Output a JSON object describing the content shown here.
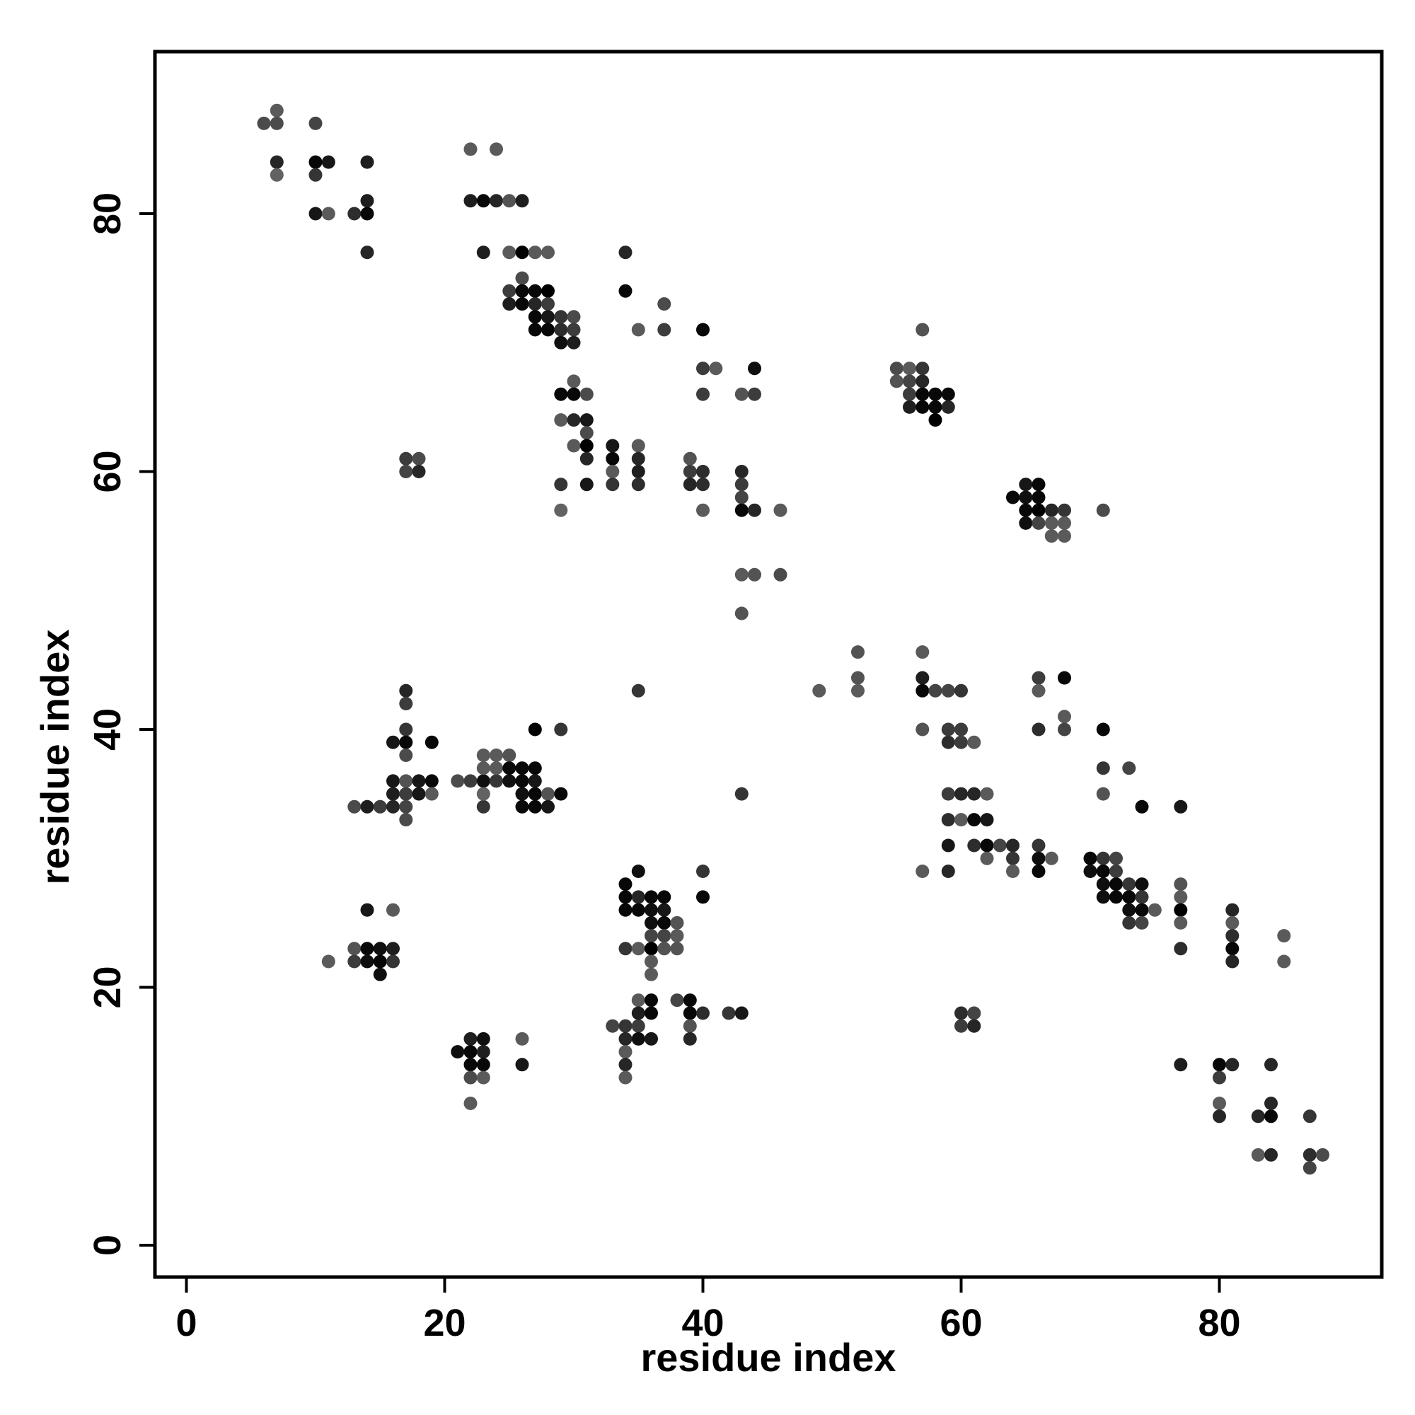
{
  "chart_data": {
    "type": "scatter",
    "title": "",
    "xlabel": "residue index",
    "ylabel": "residue index",
    "xlim": [
      -2.5,
      92.5
    ],
    "ylim": [
      -2.5,
      92.5
    ],
    "x_ticks": [
      0,
      20,
      40,
      60,
      80
    ],
    "y_ticks": [
      0,
      20,
      40,
      60,
      80
    ],
    "x_tick_labels": [
      "0",
      "20",
      "40",
      "60",
      "80"
    ],
    "y_tick_labels": [
      "0",
      "20",
      "40",
      "60",
      "80"
    ],
    "grid": false,
    "legend": "none",
    "marker_color_scale": "grayscale: darker = stronger contact (0 light gray, 1 black)",
    "points": [
      [
        6,
        87,
        0.5
      ],
      [
        7,
        88,
        0.4
      ],
      [
        7,
        87,
        0.5
      ],
      [
        7,
        84,
        0.75
      ],
      [
        7,
        83,
        0.35
      ],
      [
        10,
        87,
        0.55
      ],
      [
        10,
        84,
        0.95
      ],
      [
        10,
        83,
        0.65
      ],
      [
        10,
        80,
        0.85
      ],
      [
        11,
        84,
        0.85
      ],
      [
        11,
        80,
        0.4
      ],
      [
        13,
        80,
        0.7
      ],
      [
        14,
        84,
        0.8
      ],
      [
        14,
        81,
        0.8
      ],
      [
        14,
        80,
        0.95
      ],
      [
        14,
        77,
        0.75
      ],
      [
        22,
        85,
        0.4
      ],
      [
        24,
        85,
        0.4
      ],
      [
        22,
        81,
        0.8
      ],
      [
        23,
        81,
        0.95
      ],
      [
        24,
        81,
        0.75
      ],
      [
        25,
        81,
        0.45
      ],
      [
        26,
        81,
        0.8
      ],
      [
        23,
        77,
        0.8
      ],
      [
        25,
        77,
        0.4
      ],
      [
        26,
        77,
        1.0
      ],
      [
        27,
        77,
        0.4
      ],
      [
        28,
        77,
        0.4
      ],
      [
        26,
        75,
        0.5
      ],
      [
        25,
        74,
        0.6
      ],
      [
        26,
        74,
        0.95
      ],
      [
        27,
        74,
        0.95
      ],
      [
        28,
        74,
        1.0
      ],
      [
        25,
        73,
        0.8
      ],
      [
        26,
        73,
        0.95
      ],
      [
        27,
        73,
        0.75
      ],
      [
        28,
        73,
        0.6
      ],
      [
        27,
        72,
        0.95
      ],
      [
        28,
        72,
        0.85
      ],
      [
        29,
        72,
        0.65
      ],
      [
        30,
        72,
        0.5
      ],
      [
        27,
        71,
        0.95
      ],
      [
        28,
        71,
        0.95
      ],
      [
        29,
        71,
        0.7
      ],
      [
        30,
        71,
        0.6
      ],
      [
        29,
        70,
        0.9
      ],
      [
        30,
        70,
        0.8
      ],
      [
        34,
        77,
        0.75
      ],
      [
        34,
        74,
        0.95
      ],
      [
        35,
        71,
        0.4
      ],
      [
        37,
        73,
        0.5
      ],
      [
        37,
        71,
        0.6
      ],
      [
        40,
        71,
        0.95
      ],
      [
        40,
        68,
        0.6
      ],
      [
        41,
        68,
        0.4
      ],
      [
        40,
        66,
        0.6
      ],
      [
        44,
        68,
        0.9
      ],
      [
        43,
        66,
        0.45
      ],
      [
        44,
        66,
        0.6
      ],
      [
        30,
        67,
        0.4
      ],
      [
        29,
        66,
        0.95
      ],
      [
        30,
        66,
        0.95
      ],
      [
        31,
        66,
        0.5
      ],
      [
        29,
        64,
        0.4
      ],
      [
        30,
        64,
        0.75
      ],
      [
        31,
        64,
        0.85
      ],
      [
        31,
        63,
        0.5
      ],
      [
        30,
        62,
        0.4
      ],
      [
        31,
        62,
        1.0
      ],
      [
        31,
        61,
        0.75
      ],
      [
        29,
        59,
        0.65
      ],
      [
        29,
        57,
        0.35
      ],
      [
        31,
        59,
        0.85
      ],
      [
        33,
        62,
        0.85
      ],
      [
        33,
        61,
        0.95
      ],
      [
        33,
        60,
        0.4
      ],
      [
        33,
        59,
        0.65
      ],
      [
        35,
        62,
        0.4
      ],
      [
        35,
        61,
        0.75
      ],
      [
        35,
        60,
        0.8
      ],
      [
        35,
        59,
        0.7
      ],
      [
        39,
        61,
        0.45
      ],
      [
        39,
        60,
        0.6
      ],
      [
        40,
        60,
        0.7
      ],
      [
        39,
        59,
        0.75
      ],
      [
        40,
        59,
        0.7
      ],
      [
        40,
        57,
        0.4
      ],
      [
        43,
        60,
        0.75
      ],
      [
        43,
        59,
        0.6
      ],
      [
        43,
        58,
        0.55
      ],
      [
        43,
        57,
        0.95
      ],
      [
        44,
        57,
        0.75
      ],
      [
        46,
        57,
        0.4
      ],
      [
        43,
        52,
        0.4
      ],
      [
        44,
        52,
        0.45
      ],
      [
        46,
        52,
        0.5
      ],
      [
        43,
        49,
        0.45
      ],
      [
        17,
        61,
        0.6
      ],
      [
        18,
        61,
        0.5
      ],
      [
        17,
        60,
        0.55
      ],
      [
        18,
        60,
        0.75
      ],
      [
        57,
        71,
        0.45
      ],
      [
        55,
        68,
        0.5
      ],
      [
        56,
        68,
        0.4
      ],
      [
        57,
        68,
        0.65
      ],
      [
        55,
        67,
        0.45
      ],
      [
        56,
        67,
        0.55
      ],
      [
        57,
        67,
        0.75
      ],
      [
        56,
        66,
        0.6
      ],
      [
        57,
        66,
        0.95
      ],
      [
        58,
        66,
        0.95
      ],
      [
        59,
        66,
        0.95
      ],
      [
        56,
        65,
        0.8
      ],
      [
        57,
        65,
        0.95
      ],
      [
        58,
        65,
        0.95
      ],
      [
        59,
        65,
        0.75
      ],
      [
        58,
        64,
        1.0
      ],
      [
        64,
        58,
        0.95
      ],
      [
        65,
        59,
        0.85
      ],
      [
        66,
        59,
        0.95
      ],
      [
        65,
        58,
        0.9
      ],
      [
        66,
        58,
        0.95
      ],
      [
        65,
        57,
        0.95
      ],
      [
        66,
        57,
        1.0
      ],
      [
        67,
        57,
        0.75
      ],
      [
        68,
        57,
        0.65
      ],
      [
        65,
        56,
        0.9
      ],
      [
        66,
        56,
        0.55
      ],
      [
        67,
        56,
        0.4
      ],
      [
        68,
        56,
        0.4
      ],
      [
        67,
        55,
        0.4
      ],
      [
        68,
        55,
        0.4
      ],
      [
        71,
        57,
        0.5
      ],
      [
        52,
        46,
        0.45
      ],
      [
        49,
        43,
        0.4
      ],
      [
        52,
        44,
        0.45
      ],
      [
        52,
        43,
        0.4
      ],
      [
        57,
        46,
        0.4
      ],
      [
        57,
        44,
        0.8
      ],
      [
        57,
        43,
        0.95
      ],
      [
        58,
        43,
        0.55
      ],
      [
        59,
        43,
        0.55
      ],
      [
        60,
        43,
        0.65
      ],
      [
        57,
        40,
        0.45
      ],
      [
        59,
        40,
        0.6
      ],
      [
        60,
        40,
        0.6
      ],
      [
        59,
        39,
        0.7
      ],
      [
        60,
        39,
        0.6
      ],
      [
        61,
        39,
        0.4
      ],
      [
        66,
        44,
        0.6
      ],
      [
        66,
        43,
        0.4
      ],
      [
        68,
        44,
        0.95
      ],
      [
        68,
        41,
        0.4
      ],
      [
        66,
        40,
        0.7
      ],
      [
        68,
        40,
        0.55
      ],
      [
        59,
        35,
        0.6
      ],
      [
        60,
        35,
        0.75
      ],
      [
        61,
        35,
        0.75
      ],
      [
        62,
        35,
        0.4
      ],
      [
        59,
        33,
        0.7
      ],
      [
        60,
        33,
        0.4
      ],
      [
        61,
        33,
        0.95
      ],
      [
        62,
        33,
        0.85
      ],
      [
        59,
        31,
        0.85
      ],
      [
        61,
        31,
        0.7
      ],
      [
        62,
        31,
        0.95
      ],
      [
        63,
        31,
        0.55
      ],
      [
        64,
        31,
        0.75
      ],
      [
        57,
        29,
        0.4
      ],
      [
        59,
        29,
        0.75
      ],
      [
        62,
        30,
        0.4
      ],
      [
        64,
        30,
        0.65
      ],
      [
        64,
        29,
        0.4
      ],
      [
        66,
        31,
        0.65
      ],
      [
        66,
        30,
        0.9
      ],
      [
        67,
        30,
        0.4
      ],
      [
        66,
        29,
        0.95
      ],
      [
        71,
        40,
        0.95
      ],
      [
        71,
        37,
        0.65
      ],
      [
        73,
        37,
        0.55
      ],
      [
        71,
        35,
        0.45
      ],
      [
        74,
        34,
        0.95
      ],
      [
        77,
        34,
        0.85
      ],
      [
        70,
        30,
        0.95
      ],
      [
        71,
        30,
        0.65
      ],
      [
        72,
        30,
        0.55
      ],
      [
        70,
        29,
        0.9
      ],
      [
        71,
        29,
        0.95
      ],
      [
        72,
        29,
        0.6
      ],
      [
        71,
        28,
        0.9
      ],
      [
        72,
        28,
        0.95
      ],
      [
        73,
        28,
        0.65
      ],
      [
        74,
        28,
        0.9
      ],
      [
        71,
        27,
        0.9
      ],
      [
        72,
        27,
        0.95
      ],
      [
        73,
        27,
        0.95
      ],
      [
        74,
        27,
        0.65
      ],
      [
        73,
        26,
        0.9
      ],
      [
        74,
        26,
        0.95
      ],
      [
        75,
        26,
        0.4
      ],
      [
        73,
        25,
        0.65
      ],
      [
        74,
        25,
        0.55
      ],
      [
        77,
        28,
        0.45
      ],
      [
        77,
        27,
        0.4
      ],
      [
        77,
        26,
        1.0
      ],
      [
        77,
        25,
        0.4
      ],
      [
        77,
        23,
        0.7
      ],
      [
        81,
        26,
        0.75
      ],
      [
        81,
        25,
        0.4
      ],
      [
        81,
        24,
        0.7
      ],
      [
        81,
        23,
        0.95
      ],
      [
        81,
        22,
        0.75
      ],
      [
        85,
        24,
        0.4
      ],
      [
        85,
        22,
        0.4
      ],
      [
        17,
        43,
        0.75
      ],
      [
        17,
        42,
        0.6
      ],
      [
        17,
        40,
        0.65
      ],
      [
        17,
        39,
        0.95
      ],
      [
        19,
        39,
        0.95
      ],
      [
        17,
        38,
        0.5
      ],
      [
        16,
        39,
        0.85
      ],
      [
        16,
        36,
        0.85
      ],
      [
        17,
        36,
        0.45
      ],
      [
        18,
        36,
        0.85
      ],
      [
        19,
        36,
        0.95
      ],
      [
        16,
        35,
        0.8
      ],
      [
        17,
        35,
        0.6
      ],
      [
        18,
        35,
        0.85
      ],
      [
        19,
        35,
        0.4
      ],
      [
        13,
        34,
        0.5
      ],
      [
        14,
        34,
        0.8
      ],
      [
        15,
        34,
        0.6
      ],
      [
        16,
        34,
        0.75
      ],
      [
        17,
        34,
        0.55
      ],
      [
        17,
        33,
        0.5
      ],
      [
        21,
        36,
        0.5
      ],
      [
        22,
        36,
        0.6
      ],
      [
        23,
        36,
        0.9
      ],
      [
        24,
        36,
        0.65
      ],
      [
        23,
        34,
        0.65
      ],
      [
        23,
        35,
        0.35
      ],
      [
        23,
        38,
        0.4
      ],
      [
        24,
        38,
        0.4
      ],
      [
        25,
        38,
        0.45
      ],
      [
        23,
        37,
        0.4
      ],
      [
        24,
        37,
        0.4
      ],
      [
        25,
        37,
        0.95
      ],
      [
        26,
        37,
        0.95
      ],
      [
        27,
        37,
        0.95
      ],
      [
        25,
        36,
        0.9
      ],
      [
        26,
        36,
        0.95
      ],
      [
        27,
        36,
        0.85
      ],
      [
        26,
        35,
        0.9
      ],
      [
        27,
        35,
        0.95
      ],
      [
        28,
        35,
        0.45
      ],
      [
        29,
        35,
        0.95
      ],
      [
        26,
        34,
        0.95
      ],
      [
        27,
        34,
        0.95
      ],
      [
        28,
        34,
        0.85
      ],
      [
        27,
        40,
        1.0
      ],
      [
        29,
        40,
        0.65
      ],
      [
        11,
        22,
        0.4
      ],
      [
        13,
        23,
        0.45
      ],
      [
        14,
        23,
        0.95
      ],
      [
        15,
        23,
        0.9
      ],
      [
        16,
        23,
        0.8
      ],
      [
        13,
        22,
        0.6
      ],
      [
        14,
        22,
        0.9
      ],
      [
        15,
        22,
        0.95
      ],
      [
        16,
        22,
        0.65
      ],
      [
        15,
        21,
        0.9
      ],
      [
        14,
        26,
        0.85
      ],
      [
        16,
        26,
        0.4
      ],
      [
        35,
        43,
        0.65
      ],
      [
        43,
        35,
        0.65
      ],
      [
        34,
        28,
        0.95
      ],
      [
        35,
        29,
        0.9
      ],
      [
        34,
        27,
        0.95
      ],
      [
        35,
        27,
        0.75
      ],
      [
        36,
        27,
        0.95
      ],
      [
        37,
        27,
        0.95
      ],
      [
        34,
        26,
        0.95
      ],
      [
        35,
        26,
        0.95
      ],
      [
        36,
        26,
        0.9
      ],
      [
        37,
        26,
        0.85
      ],
      [
        36,
        25,
        0.9
      ],
      [
        37,
        25,
        0.95
      ],
      [
        38,
        25,
        0.45
      ],
      [
        36,
        24,
        0.55
      ],
      [
        37,
        24,
        0.55
      ],
      [
        38,
        24,
        0.4
      ],
      [
        34,
        23,
        0.65
      ],
      [
        35,
        23,
        0.4
      ],
      [
        36,
        23,
        1.0
      ],
      [
        37,
        23,
        0.45
      ],
      [
        38,
        23,
        0.45
      ],
      [
        36,
        22,
        0.4
      ],
      [
        36,
        21,
        0.4
      ],
      [
        40,
        29,
        0.65
      ],
      [
        40,
        27,
        0.95
      ],
      [
        33,
        17,
        0.55
      ],
      [
        34,
        17,
        0.65
      ],
      [
        35,
        17,
        0.6
      ],
      [
        34,
        16,
        0.75
      ],
      [
        35,
        16,
        0.9
      ],
      [
        36,
        16,
        0.85
      ],
      [
        35,
        19,
        0.4
      ],
      [
        36,
        19,
        0.95
      ],
      [
        35,
        18,
        0.8
      ],
      [
        36,
        18,
        0.95
      ],
      [
        34,
        15,
        0.4
      ],
      [
        34,
        14,
        0.75
      ],
      [
        34,
        13,
        0.4
      ],
      [
        38,
        19,
        0.55
      ],
      [
        39,
        19,
        0.95
      ],
      [
        39,
        18,
        0.95
      ],
      [
        40,
        18,
        0.7
      ],
      [
        39,
        17,
        0.45
      ],
      [
        39,
        16,
        0.75
      ],
      [
        42,
        18,
        0.65
      ],
      [
        43,
        18,
        0.85
      ],
      [
        21,
        15,
        0.9
      ],
      [
        22,
        16,
        0.8
      ],
      [
        23,
        16,
        0.9
      ],
      [
        22,
        15,
        0.95
      ],
      [
        23,
        15,
        0.8
      ],
      [
        22,
        14,
        0.95
      ],
      [
        23,
        14,
        0.95
      ],
      [
        22,
        13,
        0.5
      ],
      [
        23,
        13,
        0.4
      ],
      [
        22,
        11,
        0.4
      ],
      [
        26,
        16,
        0.4
      ],
      [
        26,
        14,
        0.85
      ],
      [
        60,
        18,
        0.7
      ],
      [
        61,
        18,
        0.55
      ],
      [
        60,
        17,
        0.6
      ],
      [
        61,
        17,
        0.75
      ],
      [
        77,
        14,
        0.8
      ],
      [
        80,
        14,
        0.95
      ],
      [
        81,
        14,
        0.75
      ],
      [
        80,
        13,
        0.6
      ],
      [
        84,
        14,
        0.75
      ],
      [
        80,
        11,
        0.4
      ],
      [
        80,
        10,
        0.75
      ],
      [
        83,
        10,
        0.75
      ],
      [
        84,
        10,
        0.95
      ],
      [
        84,
        11,
        0.75
      ],
      [
        87,
        10,
        0.65
      ],
      [
        83,
        7,
        0.4
      ],
      [
        84,
        7,
        0.75
      ],
      [
        87,
        7,
        0.7
      ],
      [
        88,
        7,
        0.5
      ],
      [
        87,
        6,
        0.55
      ]
    ]
  }
}
